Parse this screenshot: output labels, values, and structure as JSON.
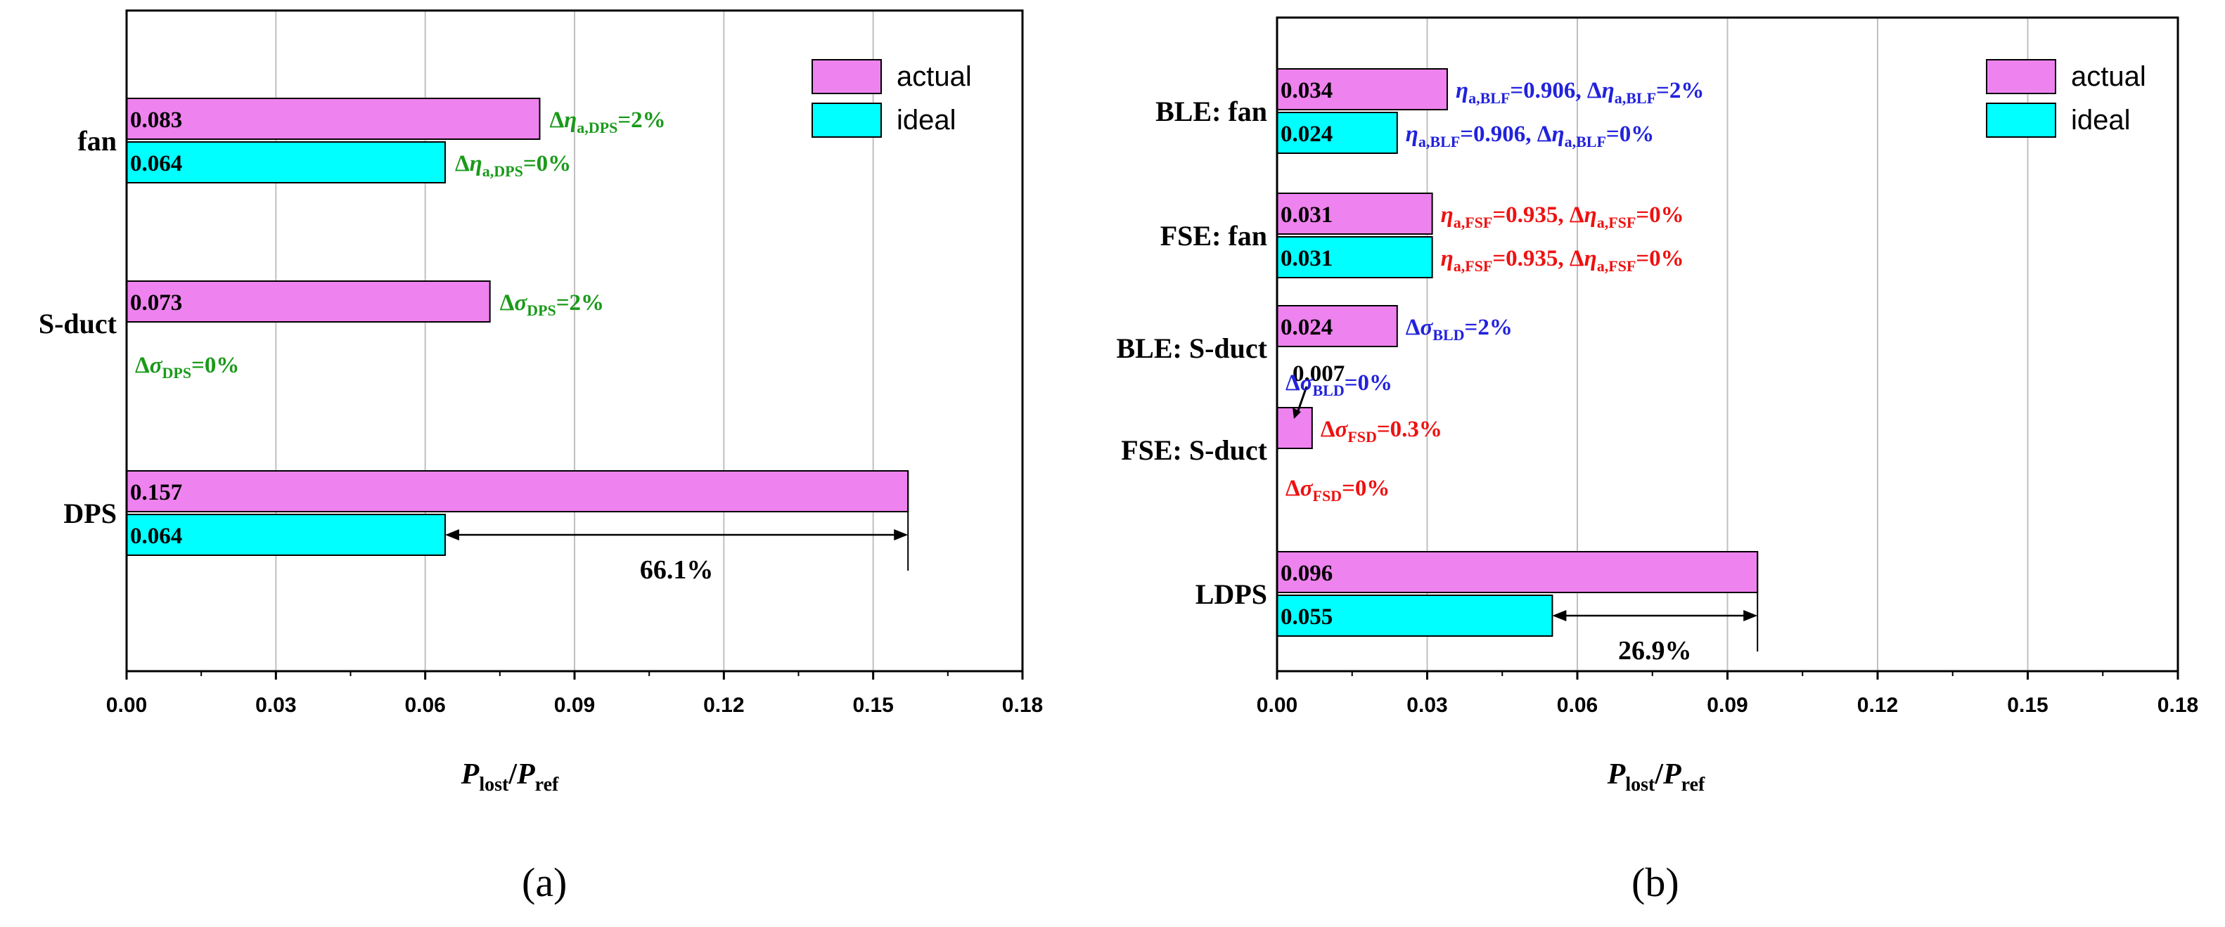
{
  "colors": {
    "actual": "#ee82ee",
    "ideal": "#00ffff",
    "green": "#1a9a1a",
    "blue": "#2222dd",
    "red": "#ee1111",
    "grid": "#c0c0c0"
  },
  "chart_data": [
    {
      "type": "bar",
      "orientation": "horizontal",
      "panel_label": "(a)",
      "xlabel": {
        "main1": "P",
        "sub1": "lost",
        "slash": "/",
        "main2": "P",
        "sub2": "ref"
      },
      "xlim": [
        0,
        0.18
      ],
      "xticks": [
        "0.00",
        "0.03",
        "0.06",
        "0.09",
        "0.12",
        "0.15",
        "0.18"
      ],
      "grid": true,
      "legend": {
        "position": "top-right",
        "entries": [
          "actual",
          "ideal"
        ]
      },
      "categories": [
        "fan",
        "S-duct",
        "DPS"
      ],
      "series": [
        {
          "name": "actual",
          "values": [
            0.083,
            0.073,
            0.157
          ],
          "labels": [
            "0.083",
            "0.073",
            "0.157"
          ]
        },
        {
          "name": "ideal",
          "values": [
            0.064,
            0,
            0.064
          ],
          "labels": [
            "0.064",
            "",
            "0.064"
          ]
        }
      ],
      "annotations": [
        {
          "category": 0,
          "series": "actual",
          "color": "green",
          "parts": [
            [
              "",
              "Δ"
            ],
            [
              "i",
              "η"
            ],
            [
              "s",
              "a,DPS"
            ],
            [
              "",
              "=2%"
            ]
          ]
        },
        {
          "category": 0,
          "series": "ideal",
          "color": "green",
          "parts": [
            [
              "",
              "Δ"
            ],
            [
              "i",
              "η"
            ],
            [
              "s",
              "a,DPS"
            ],
            [
              "",
              "=0%"
            ]
          ]
        },
        {
          "category": 1,
          "series": "actual",
          "color": "green",
          "parts": [
            [
              "",
              "Δ"
            ],
            [
              "i",
              "σ"
            ],
            [
              "s",
              "DPS"
            ],
            [
              "",
              "=2%"
            ]
          ]
        },
        {
          "category": 1,
          "series": "ideal",
          "color": "green",
          "parts": [
            [
              "",
              "Δ"
            ],
            [
              "i",
              "σ"
            ],
            [
              "s",
              "DPS"
            ],
            [
              "",
              "=0%"
            ]
          ]
        }
      ],
      "difference": {
        "category": 2,
        "from": 0.064,
        "to": 0.157,
        "label": "66.1%"
      }
    },
    {
      "type": "bar",
      "orientation": "horizontal",
      "panel_label": "(b)",
      "xlabel": {
        "main1": "P",
        "sub1": "lost",
        "slash": "/",
        "main2": "P",
        "sub2": "ref"
      },
      "xlim": [
        0,
        0.18
      ],
      "xticks": [
        "0.00",
        "0.03",
        "0.06",
        "0.09",
        "0.12",
        "0.15",
        "0.18"
      ],
      "grid": true,
      "legend": {
        "position": "top-right",
        "entries": [
          "actual",
          "ideal"
        ]
      },
      "categories": [
        "BLE: fan",
        "FSE: fan",
        "BLE: S-duct",
        "FSE: S-duct",
        "LDPS"
      ],
      "series": [
        {
          "name": "actual",
          "values": [
            0.034,
            0.031,
            0.024,
            0.007,
            0.096
          ],
          "labels": [
            "0.034",
            "0.031",
            "0.024",
            "0.007",
            "0.096"
          ]
        },
        {
          "name": "ideal",
          "values": [
            0.024,
            0.031,
            0,
            0,
            0.055
          ],
          "labels": [
            "0.024",
            "0.031",
            "",
            "",
            "0.055"
          ]
        }
      ],
      "annotations": [
        {
          "category": 0,
          "series": "actual",
          "color": "blue",
          "parts": [
            [
              "i",
              "η"
            ],
            [
              "s",
              "a,BLF"
            ],
            [
              "",
              "=0.906, Δ"
            ],
            [
              "i",
              "η"
            ],
            [
              "s",
              "a,BLF"
            ],
            [
              "",
              "=2%"
            ]
          ]
        },
        {
          "category": 0,
          "series": "ideal",
          "color": "blue",
          "parts": [
            [
              "i",
              "η"
            ],
            [
              "s",
              "a,BLF"
            ],
            [
              "",
              "=0.906, Δ"
            ],
            [
              "i",
              "η"
            ],
            [
              "s",
              "a,BLF"
            ],
            [
              "",
              "=0%"
            ]
          ]
        },
        {
          "category": 1,
          "series": "actual",
          "color": "red",
          "parts": [
            [
              "i",
              "η"
            ],
            [
              "s",
              "a,FSF"
            ],
            [
              "",
              "=0.935, Δ"
            ],
            [
              "i",
              "η"
            ],
            [
              "s",
              "a,FSF"
            ],
            [
              "",
              "=0%"
            ]
          ]
        },
        {
          "category": 1,
          "series": "ideal",
          "color": "red",
          "parts": [
            [
              "i",
              "η"
            ],
            [
              "s",
              "a,FSF"
            ],
            [
              "",
              "=0.935, Δ"
            ],
            [
              "i",
              "η"
            ],
            [
              "s",
              "a,FSF"
            ],
            [
              "",
              "=0%"
            ]
          ]
        },
        {
          "category": 2,
          "series": "actual",
          "color": "blue",
          "parts": [
            [
              "",
              "Δ"
            ],
            [
              "i",
              "σ"
            ],
            [
              "s",
              "BLD"
            ],
            [
              "",
              "=2%"
            ]
          ]
        },
        {
          "category": 2,
          "series": "ideal",
          "color": "blue",
          "parts": [
            [
              "",
              "Δ"
            ],
            [
              "i",
              "σ"
            ],
            [
              "s",
              "BLD"
            ],
            [
              "",
              "=0%"
            ]
          ]
        },
        {
          "category": 3,
          "series": "actual",
          "color": "red",
          "parts": [
            [
              "",
              "Δ"
            ],
            [
              "i",
              "σ"
            ],
            [
              "s",
              "FSD"
            ],
            [
              "",
              "=0.3%"
            ]
          ]
        },
        {
          "category": 3,
          "series": "ideal",
          "color": "red",
          "parts": [
            [
              "",
              "Δ"
            ],
            [
              "i",
              "σ"
            ],
            [
              "s",
              "FSD"
            ],
            [
              "",
              "=0%"
            ]
          ]
        }
      ],
      "difference": {
        "category": 4,
        "from": 0.055,
        "to": 0.096,
        "label": "26.9%"
      }
    }
  ]
}
